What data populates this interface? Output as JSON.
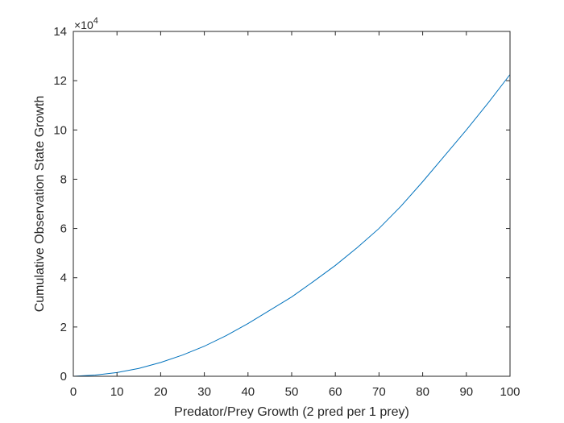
{
  "chart_data": {
    "type": "line",
    "title": "",
    "xlabel": "Predator/Prey Growth (2 pred per 1 prey)",
    "ylabel": "Cumulative Observation State Growth",
    "xlim": [
      0,
      100
    ],
    "ylim": [
      0,
      14
    ],
    "y_multiplier": "×10",
    "y_multiplier_exponent": "4",
    "xticks": [
      "0",
      "10",
      "20",
      "30",
      "40",
      "50",
      "60",
      "70",
      "80",
      "90",
      "100"
    ],
    "yticks": [
      "0",
      "2",
      "4",
      "6",
      "8",
      "10",
      "12",
      "14"
    ],
    "grid": false,
    "series": [
      {
        "color": "#0072BD",
        "x": [
          0,
          5,
          10,
          15,
          20,
          25,
          30,
          35,
          40,
          45,
          50,
          55,
          60,
          65,
          70,
          75,
          80,
          85,
          90,
          95,
          100
        ],
        "y": [
          0,
          0.05,
          0.15,
          0.32,
          0.56,
          0.86,
          1.22,
          1.65,
          2.14,
          2.68,
          3.22,
          3.85,
          4.5,
          5.22,
          6.0,
          6.9,
          7.9,
          8.95,
          10.0,
          11.1,
          12.25
        ]
      }
    ]
  }
}
